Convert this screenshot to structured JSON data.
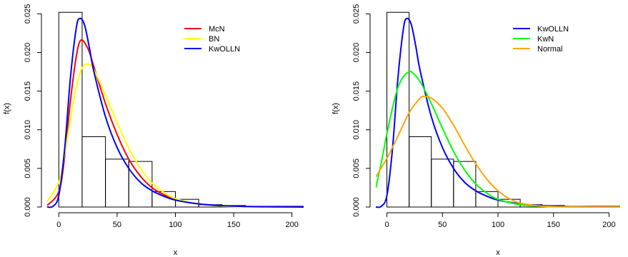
{
  "chart_data": [
    {
      "type": "histogram-with-density-curves",
      "xlabel": "x",
      "ylabel": "f(x)",
      "xlim": [
        -10,
        210
      ],
      "ylim": [
        0,
        0.0255
      ],
      "xticks": [
        0,
        50,
        100,
        150,
        200
      ],
      "xtick_labels": [
        "0",
        "50",
        "100",
        "150",
        "200"
      ],
      "yticks": [
        0,
        0.005,
        0.01,
        0.015,
        0.02,
        0.025
      ],
      "ytick_labels": [
        "0.000",
        "0.005",
        "0.010",
        "0.015",
        "0.020",
        "0.025"
      ],
      "grid": false,
      "legend_position": "top-right",
      "histogram": {
        "bin_edges": [
          0,
          20,
          40,
          60,
          80,
          100,
          120,
          140,
          160,
          180,
          200,
          220
        ],
        "densities": [
          0.0252,
          0.0091,
          0.0062,
          0.0059,
          0.002,
          0.001,
          0.0003,
          0.0002,
          0.0001,
          0.0001,
          0.0001
        ]
      },
      "series": [
        {
          "name": "McN",
          "color": "#ff0000",
          "x": [
            -10,
            0,
            5,
            10,
            15,
            19,
            25,
            30,
            40,
            50,
            60,
            70,
            80,
            90,
            100,
            120,
            140,
            160,
            180,
            200,
            210
          ],
          "y": [
            0.0002,
            0.002,
            0.0065,
            0.0138,
            0.0195,
            0.0216,
            0.0205,
            0.0182,
            0.0134,
            0.0094,
            0.0062,
            0.004,
            0.0025,
            0.0016,
            0.001,
            0.0004,
            0.00015,
            6e-05,
            2e-05,
            1e-05,
            0
          ]
        },
        {
          "name": "BN",
          "color": "#ffff00",
          "x": [
            -10,
            0,
            5,
            10,
            15,
            20,
            25,
            30,
            40,
            50,
            60,
            70,
            80,
            90,
            100,
            120,
            140,
            160,
            180,
            200,
            210
          ],
          "y": [
            0.0007,
            0.0032,
            0.0068,
            0.0114,
            0.0155,
            0.018,
            0.0185,
            0.0178,
            0.0145,
            0.0109,
            0.0076,
            0.005,
            0.0031,
            0.0019,
            0.0011,
            0.0004,
            0.00012,
            4e-05,
            1e-05,
            0,
            0
          ]
        },
        {
          "name": "KwOLLN",
          "color": "#0000ff",
          "x": [
            -10,
            -5,
            0,
            5,
            10,
            15,
            18,
            22,
            26,
            30,
            40,
            50,
            60,
            70,
            80,
            90,
            100,
            120,
            140,
            160,
            180,
            200,
            210
          ],
          "y": [
            0,
            0.0001,
            0.0015,
            0.0075,
            0.0168,
            0.0232,
            0.0244,
            0.0236,
            0.0208,
            0.0176,
            0.0117,
            0.0077,
            0.005,
            0.0032,
            0.0021,
            0.0014,
            0.0009,
            0.0004,
            0.00017,
            7e-05,
            3e-05,
            1e-05,
            0
          ]
        }
      ]
    },
    {
      "type": "histogram-with-density-curves",
      "xlabel": "x",
      "ylabel": "f(x)",
      "xlim": [
        -10,
        210
      ],
      "ylim": [
        0,
        0.0255
      ],
      "xticks": [
        0,
        50,
        100,
        150,
        200
      ],
      "xtick_labels": [
        "0",
        "50",
        "100",
        "150",
        "200"
      ],
      "yticks": [
        0,
        0.005,
        0.01,
        0.015,
        0.02,
        0.025
      ],
      "ytick_labels": [
        "0.000",
        "0.005",
        "0.010",
        "0.015",
        "0.020",
        "0.025"
      ],
      "grid": false,
      "legend_position": "top-right",
      "histogram": {
        "bin_edges": [
          0,
          20,
          40,
          60,
          80,
          100,
          120,
          140,
          160,
          180,
          200,
          220
        ],
        "densities": [
          0.0252,
          0.0091,
          0.0062,
          0.0059,
          0.002,
          0.001,
          0.0003,
          0.0002,
          0.0001,
          0.0001,
          0.0001
        ]
      },
      "series": [
        {
          "name": "KwOLLN",
          "color": "#0000ff",
          "x": [
            -10,
            -5,
            0,
            5,
            10,
            15,
            18,
            22,
            26,
            30,
            40,
            50,
            60,
            70,
            80,
            90,
            100,
            120,
            140,
            160,
            180,
            200,
            210
          ],
          "y": [
            0,
            0.0001,
            0.0015,
            0.0075,
            0.0168,
            0.0232,
            0.0244,
            0.0236,
            0.0208,
            0.0176,
            0.0117,
            0.0077,
            0.005,
            0.0032,
            0.0021,
            0.0014,
            0.0009,
            0.0004,
            0.00017,
            7e-05,
            3e-05,
            1e-05,
            0
          ]
        },
        {
          "name": "KwN",
          "color": "#00ff00",
          "x": [
            -10,
            -5,
            0,
            5,
            10,
            15,
            20,
            23,
            30,
            40,
            50,
            60,
            70,
            80,
            90,
            100,
            120,
            140,
            160,
            180,
            200,
            210
          ],
          "y": [
            0.0025,
            0.0058,
            0.0095,
            0.0128,
            0.0155,
            0.0169,
            0.0175,
            0.0174,
            0.0162,
            0.0134,
            0.0102,
            0.0072,
            0.0048,
            0.003,
            0.0018,
            0.001,
            0.0003,
            0.0001,
            3e-05,
            1e-05,
            0,
            0
          ]
        },
        {
          "name": "Normal",
          "color": "#ffa500",
          "x": [
            -10,
            0,
            10,
            20,
            30,
            34,
            40,
            50,
            60,
            70,
            80,
            90,
            100,
            110,
            120,
            140,
            160,
            180,
            200,
            210
          ],
          "y": [
            0.0039,
            0.0063,
            0.0092,
            0.0122,
            0.0141,
            0.0143,
            0.0141,
            0.0128,
            0.0106,
            0.008,
            0.0056,
            0.0036,
            0.0021,
            0.0011,
            0.0005,
            0.0001,
            2e-05,
            0,
            0,
            0
          ]
        }
      ]
    }
  ]
}
